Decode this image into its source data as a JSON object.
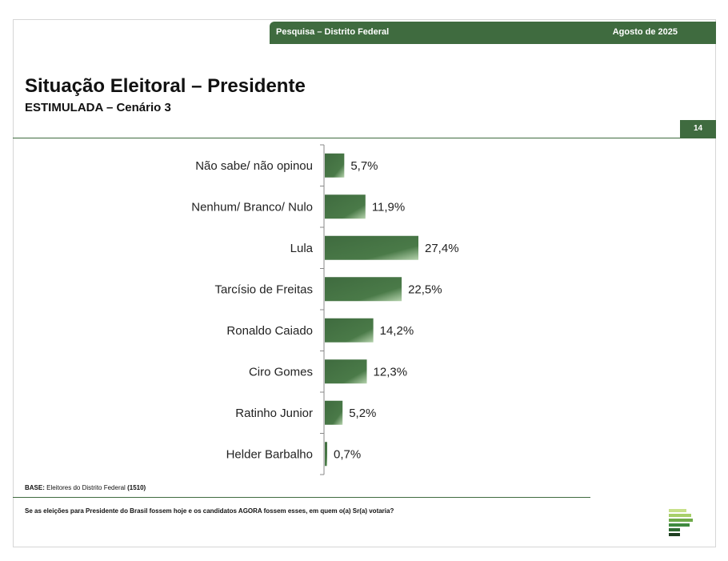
{
  "header": {
    "banner_left": "Pesquisa – Distrito Federal",
    "banner_right": "Agosto de 2025",
    "title": "Situação Eleitoral – Presidente",
    "subtitle": "ESTIMULADA – Cenário 3",
    "page_number": "14"
  },
  "footer": {
    "base_label": "BASE:",
    "base_text": "Eleitores do Distrito Federal",
    "base_count": "(1510)",
    "question": "Se as eleições para Presidente do Brasil fossem hoje e os candidatos AGORA fossem esses, em quem o(a) Sr(a) votaria?"
  },
  "colors": {
    "accent": "#3f6b3f",
    "bar": "#3f6b3f",
    "bar_highlight": "#a9c9a0"
  },
  "chart_data": {
    "type": "bar",
    "orientation": "horizontal",
    "categories": [
      "Não sabe/ não opinou",
      "Nenhum/ Branco/ Nulo",
      "Lula",
      "Tarcísio de Freitas",
      "Ronaldo Caiado",
      "Ciro Gomes",
      "Ratinho Junior",
      "Helder Barbalho"
    ],
    "values": [
      5.7,
      11.9,
      27.4,
      22.5,
      14.2,
      12.3,
      5.2,
      0.7
    ],
    "value_labels": [
      "5,7%",
      "11,9%",
      "27,4%",
      "22,5%",
      "14,2%",
      "12,3%",
      "5,2%",
      "0,7%"
    ],
    "xlim": [
      0,
      100
    ],
    "grid": false,
    "legend": "none"
  }
}
